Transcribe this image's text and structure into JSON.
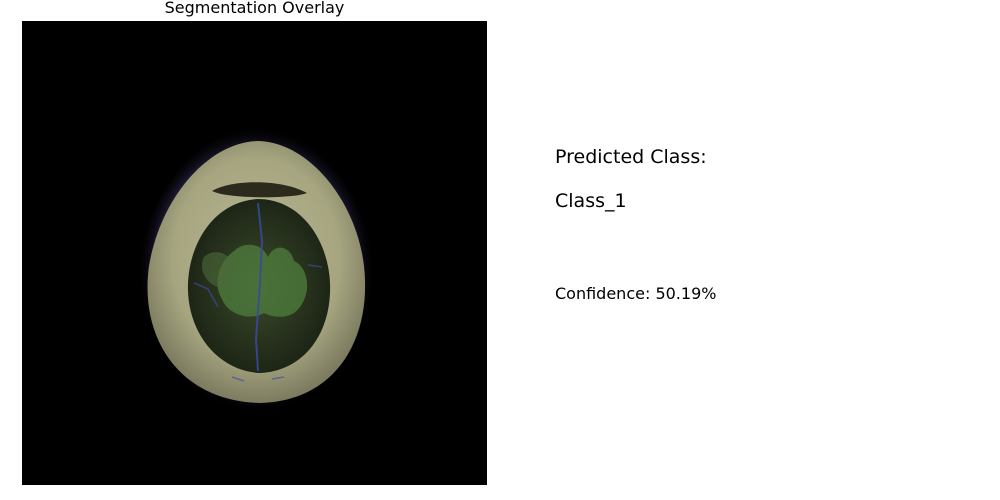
{
  "overlay_panel": {
    "title": "Segmentation Overlay"
  },
  "prediction": {
    "heading": "Predicted Class:",
    "class_name": "Class_1",
    "confidence_text": "Confidence: 50.19%",
    "confidence_percent": 50.19
  },
  "colors": {
    "background": "#ffffff",
    "scan_background": "#000000",
    "text": "#000000",
    "skull_ring": "#9c9a78",
    "brain_tissue": "#2e3a22",
    "segmentation_overlay": "#4a7a3a",
    "vessel_lines": "#3a4aa0"
  }
}
